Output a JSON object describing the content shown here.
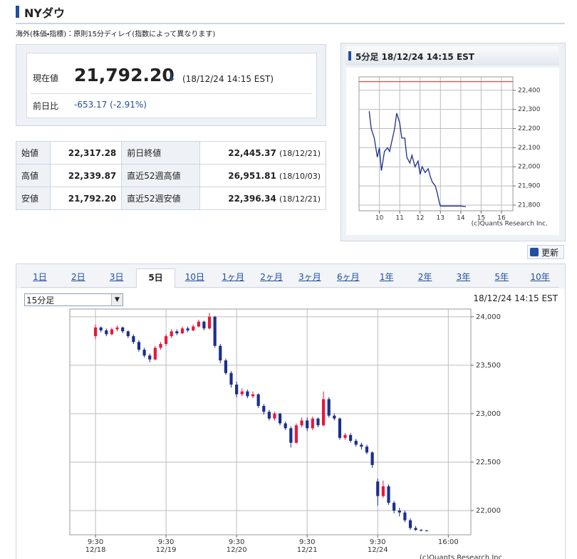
{
  "header": {
    "title": "NYダウ",
    "note": "海外(株価・指標)：原則15分ディレイ(指数によって異なります)"
  },
  "quote": {
    "price_label": "現在値",
    "price": "21,792.20",
    "arrow": "↓",
    "time": "(18/12/24 14:15 EST)",
    "change_label": "前日比",
    "change": "-653.17 (-2.91%)"
  },
  "table": {
    "rows": [
      [
        "始値",
        "22,317.28",
        "前日終値",
        "22,445.37",
        "(18/12/21)"
      ],
      [
        "高値",
        "22,339.87",
        "直近52週高値",
        "26,951.81",
        "(18/10/03)"
      ],
      [
        "安値",
        "21,792.20",
        "直近52週安値",
        "22,396.34",
        "(18/12/21)"
      ]
    ]
  },
  "refresh": "更新",
  "tabs": [
    "1日",
    "2日",
    "3日",
    "5日",
    "10日",
    "1ヶ月",
    "2ヶ月",
    "3ヶ月",
    "6ヶ月",
    "1年",
    "2年",
    "3年",
    "5年",
    "10年"
  ],
  "interval": "15分足",
  "timestamp": "18/12/24 14:15 EST",
  "chart_data": [
    {
      "type": "line",
      "title": "5分足 18/12/24 14:15 EST",
      "credit": "(c)Quants Research Inc.",
      "x": [
        9.5,
        9.6,
        9.75,
        9.9,
        10,
        10.1,
        10.25,
        10.4,
        10.5,
        10.75,
        10.85,
        11,
        11.1,
        11.25,
        11.35,
        11.5,
        11.6,
        11.75,
        11.9,
        12,
        12.1,
        12.25,
        12.4,
        12.5,
        12.6,
        12.75,
        12.85,
        12.95,
        13,
        13.5,
        14,
        14.25
      ],
      "values": [
        22290,
        22200,
        22150,
        22050,
        22100,
        21980,
        22080,
        22100,
        22080,
        22200,
        22280,
        22230,
        22150,
        22150,
        22050,
        22020,
        22060,
        22000,
        22030,
        21960,
        22000,
        21970,
        21990,
        21950,
        21920,
        21900,
        21860,
        21810,
        21795,
        21795,
        21795,
        21792
      ],
      "color": "#1a2e8a",
      "reference_line": 22445.37,
      "reference_color": "#e04848",
      "xlim": [
        9,
        16.56
      ],
      "xticks": [
        10,
        11,
        12,
        13,
        14,
        15,
        16
      ],
      "ylim": [
        21770,
        22470
      ],
      "yticks": [
        {
          "value": 21800,
          "label": "21,800"
        },
        {
          "value": 21900,
          "label": "21,900"
        },
        {
          "value": 22000,
          "label": "22,000"
        },
        {
          "value": 22100,
          "label": "22,100"
        },
        {
          "value": 22200,
          "label": "22,200"
        },
        {
          "value": 22300,
          "label": "22,300"
        },
        {
          "value": 22400,
          "label": "22,400"
        }
      ],
      "grid": true
    },
    {
      "type": "candlestick",
      "credit": "(c)Quants Research Inc.",
      "x": [
        0,
        0.077,
        0.154,
        0.231,
        0.308,
        0.385,
        0.462,
        0.538,
        0.615,
        0.692,
        0.769,
        0.846,
        0.923,
        1,
        1.077,
        1.154,
        1.231,
        1.308,
        1.385,
        1.462,
        1.538,
        1.615,
        1.692,
        1.769,
        1.846,
        1.923,
        2,
        2.077,
        2.154,
        2.231,
        2.308,
        2.385,
        2.462,
        2.538,
        2.615,
        2.692,
        2.769,
        2.846,
        2.923,
        3,
        3.077,
        3.154,
        3.231,
        3.308,
        3.385,
        3.462,
        3.538,
        3.615,
        3.692,
        3.769,
        3.846,
        3.923,
        4,
        4.077,
        4.154,
        4.231,
        4.308,
        4.385,
        4.462,
        4.538,
        4.615,
        4.692
      ],
      "open": [
        23800,
        23890,
        23860,
        23820,
        23870,
        23890,
        23850,
        23800,
        23740,
        23660,
        23600,
        23560,
        23680,
        23720,
        23800,
        23850,
        23830,
        23880,
        23860,
        23900,
        23950,
        23880,
        24000,
        23700,
        23550,
        23420,
        23300,
        23200,
        23230,
        23180,
        23200,
        23080,
        23020,
        22950,
        23000,
        22900,
        22850,
        22700,
        22880,
        22930,
        22850,
        22950,
        22880,
        23150,
        22980,
        22950,
        22750,
        22780,
        22720,
        22680,
        22660,
        22600,
        22300,
        22150,
        22250,
        22080,
        22000,
        21980,
        21900,
        21820,
        21800,
        21795
      ],
      "high": [
        23920,
        23900,
        23880,
        23890,
        23910,
        23900,
        23860,
        23820,
        23760,
        23680,
        23620,
        23700,
        23740,
        23820,
        23870,
        23870,
        23900,
        23900,
        23920,
        23970,
        23960,
        24040,
        24010,
        23720,
        23570,
        23440,
        23330,
        23260,
        23250,
        23230,
        23210,
        23100,
        23040,
        23020,
        23010,
        22920,
        22870,
        22900,
        22960,
        22960,
        22970,
        22960,
        23230,
        23170,
        23000,
        22960,
        22800,
        22800,
        22740,
        22700,
        22680,
        22610,
        22330,
        22310,
        22270,
        22100,
        22030,
        22000,
        21920,
        21840,
        21810,
        21800
      ],
      "low": [
        23770,
        23840,
        23800,
        23810,
        23850,
        23830,
        23780,
        23720,
        23640,
        23580,
        23530,
        23550,
        23660,
        23700,
        23780,
        23810,
        23820,
        23840,
        23850,
        23890,
        23860,
        23870,
        23680,
        23520,
        23400,
        23270,
        23170,
        23180,
        23160,
        23160,
        23060,
        22990,
        22930,
        22930,
        22880,
        22830,
        22650,
        22690,
        22860,
        22820,
        22830,
        22860,
        22870,
        22960,
        22930,
        22730,
        22730,
        22700,
        22660,
        22630,
        22580,
        22440,
        22050,
        22130,
        22060,
        21970,
        21940,
        21880,
        21800,
        21790,
        21785,
        21785
      ],
      "close": [
        23890,
        23860,
        23820,
        23870,
        23890,
        23850,
        23800,
        23740,
        23660,
        23600,
        23560,
        23680,
        23720,
        23800,
        23850,
        23830,
        23880,
        23860,
        23900,
        23950,
        23880,
        24000,
        23700,
        23550,
        23420,
        23300,
        23200,
        23230,
        23180,
        23200,
        23080,
        23020,
        22950,
        23000,
        22900,
        22850,
        22700,
        22880,
        22930,
        22850,
        22950,
        22880,
        23150,
        22980,
        22950,
        22750,
        22780,
        22720,
        22680,
        22660,
        22600,
        22470,
        22150,
        22250,
        22080,
        22000,
        21980,
        21900,
        21820,
        21800,
        21795,
        21792
      ],
      "up_color": "#e8173c",
      "down_color": "#1b2f8c",
      "xlim": [
        -0.364,
        5.32
      ],
      "xticks": [
        {
          "value": 0,
          "label": "9:30",
          "sublabel": "12/18"
        },
        {
          "value": 1,
          "label": "9:30",
          "sublabel": "12/19"
        },
        {
          "value": 2,
          "label": "9:30",
          "sublabel": "12/20"
        },
        {
          "value": 3,
          "label": "9:30",
          "sublabel": "12/21"
        },
        {
          "value": 4,
          "label": "9:30",
          "sublabel": "12/24"
        },
        {
          "value": 5,
          "label": "16:00"
        }
      ],
      "ylim": [
        21750,
        24080
      ],
      "yticks": [
        {
          "value": 22000,
          "label": "22,000"
        },
        {
          "value": 22500,
          "label": "22,500"
        },
        {
          "value": 23000,
          "label": "23,000"
        },
        {
          "value": 23500,
          "label": "23,500"
        },
        {
          "value": 24000,
          "label": "24,000"
        }
      ],
      "grid": true
    }
  ]
}
